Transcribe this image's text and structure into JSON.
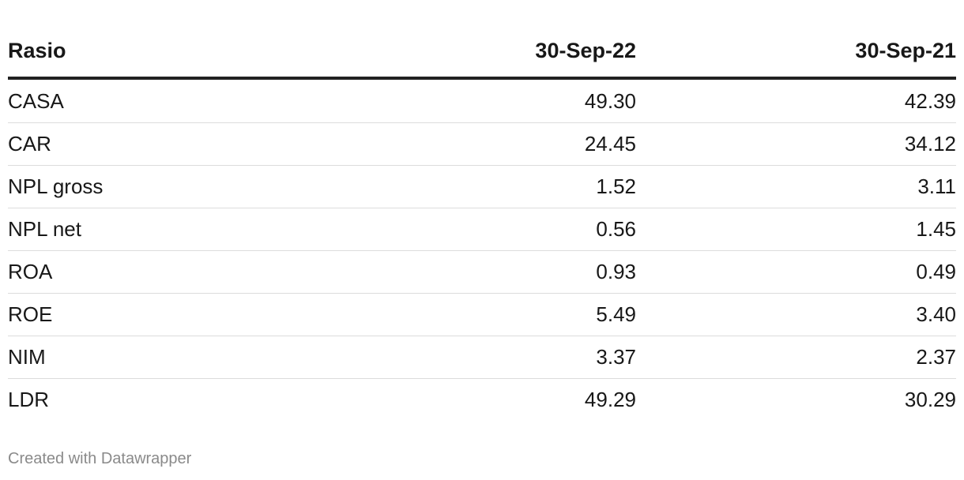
{
  "table": {
    "header": [
      "Rasio",
      "30-Sep-22",
      "30-Sep-21"
    ],
    "rows": [
      [
        "CASA",
        "49.30",
        "42.39"
      ],
      [
        "CAR",
        "24.45",
        "34.12"
      ],
      [
        "NPL gross",
        "1.52",
        "3.11"
      ],
      [
        "NPL net",
        "0.56",
        "1.45"
      ],
      [
        "ROA",
        "0.93",
        "0.49"
      ],
      [
        "ROE",
        "5.49",
        "3.40"
      ],
      [
        "NIM",
        "3.37",
        "2.37"
      ],
      [
        "LDR",
        "49.29",
        "30.29"
      ]
    ]
  },
  "footer": "Created with Datawrapper"
}
